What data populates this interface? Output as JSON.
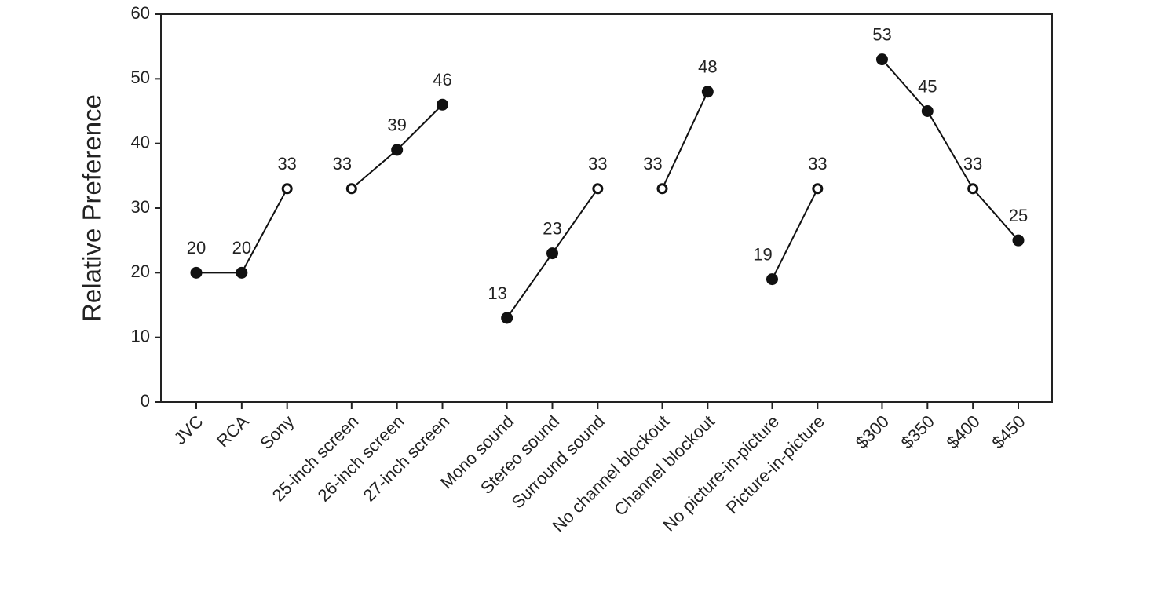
{
  "chart_data": {
    "type": "line",
    "y_label": "Relative Preference",
    "categories": [
      "JVC",
      "RCA",
      "Sony",
      null,
      "25-inch screen",
      "26-inch screen",
      "27-inch screen",
      null,
      "Mono sound",
      "Stereo sound",
      "Surround sound",
      null,
      "No channel blockout",
      "Channel blockout",
      null,
      "No picture-in-picture",
      "Picture-in-picture",
      null,
      "$300",
      "$350",
      "$400",
      "$450"
    ],
    "values": [
      20,
      20,
      33,
      null,
      33,
      39,
      46,
      null,
      13,
      23,
      33,
      null,
      33,
      48,
      null,
      19,
      33,
      null,
      53,
      45,
      33,
      25
    ],
    "markers": [
      "filled",
      "filled",
      "open",
      null,
      "open",
      "filled",
      "filled",
      null,
      "filled",
      "filled",
      "open",
      null,
      "open",
      "filled",
      null,
      "filled",
      "open",
      null,
      "filled",
      "filled",
      "open",
      "filled"
    ],
    "color": "#111111",
    "ylim": [
      0,
      60
    ],
    "yticks": [
      0,
      10,
      20,
      30,
      40,
      50,
      60
    ],
    "grid": false
  }
}
